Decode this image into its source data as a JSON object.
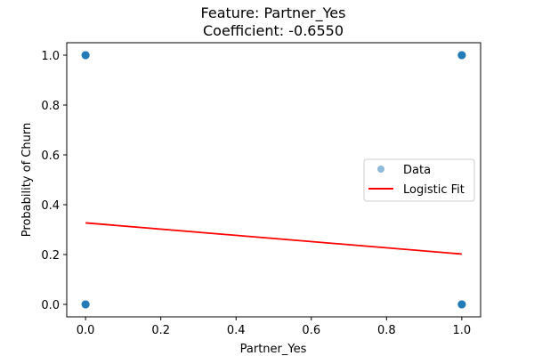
{
  "chart_data": {
    "type": "scatter",
    "title": "Feature: Partner_Yes",
    "subtitle": "Coefficient: -0.6550",
    "xlabel": "Partner_Yes",
    "ylabel": "Probability of Churn",
    "xlim": [
      -0.05,
      1.05
    ],
    "ylim": [
      -0.05,
      1.05
    ],
    "xticks": [
      0.0,
      0.2,
      0.4,
      0.6,
      0.8,
      1.0
    ],
    "xtick_labels": [
      "0.0",
      "0.2",
      "0.4",
      "0.6",
      "0.8",
      "1.0"
    ],
    "yticks": [
      0.0,
      0.2,
      0.4,
      0.6,
      0.8,
      1.0
    ],
    "ytick_labels": [
      "0.0",
      "0.2",
      "0.4",
      "0.6",
      "0.8",
      "1.0"
    ],
    "grid": false,
    "legend_position": "center-right",
    "series": [
      {
        "name": "Data",
        "kind": "scatter",
        "color": "#1f77b4",
        "points": [
          [
            0,
            0
          ],
          [
            0,
            1
          ],
          [
            1,
            0
          ],
          [
            1,
            1
          ]
        ]
      },
      {
        "name": "Logistic Fit",
        "kind": "line",
        "color": "#ff0000",
        "points": [
          [
            0,
            0.327
          ],
          [
            1,
            0.202
          ]
        ]
      }
    ]
  }
}
